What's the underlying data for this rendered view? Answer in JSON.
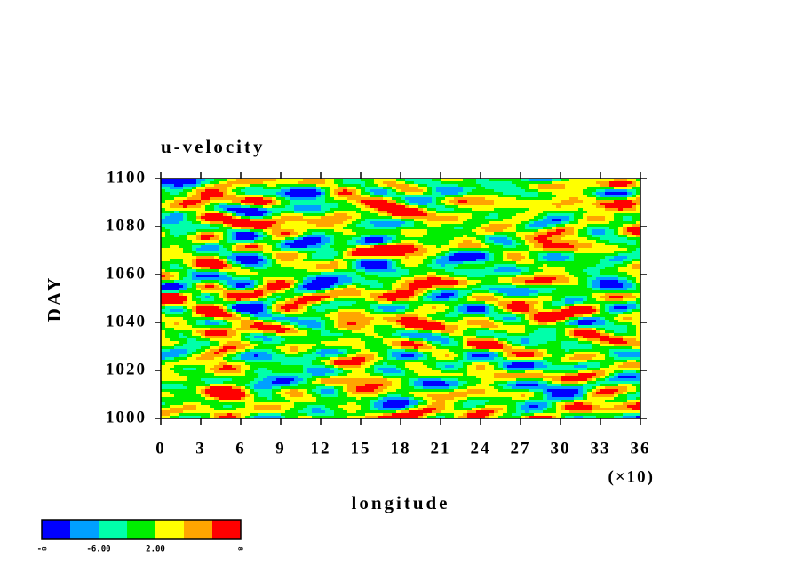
{
  "chart_data": {
    "type": "contour",
    "title": "u-velocity",
    "xlabel": "longitude",
    "ylabel": "DAY",
    "x_multiplier": "(×10)",
    "xlim": [
      0,
      36
    ],
    "xticks": [
      0,
      3,
      6,
      9,
      12,
      15,
      18,
      21,
      24,
      27,
      30,
      33,
      36
    ],
    "ylim": [
      1000,
      1100
    ],
    "yticks": [
      1000,
      1020,
      1040,
      1060,
      1080,
      1100
    ],
    "colors": [
      "#0000ff",
      "#00a0ff",
      "#00ffaa",
      "#00ee00",
      "#ffff00",
      "#ffa500",
      "#ff0000"
    ],
    "levels": [
      "-∞",
      null,
      "-6.00",
      null,
      "2.00",
      null,
      null,
      "∞"
    ]
  }
}
